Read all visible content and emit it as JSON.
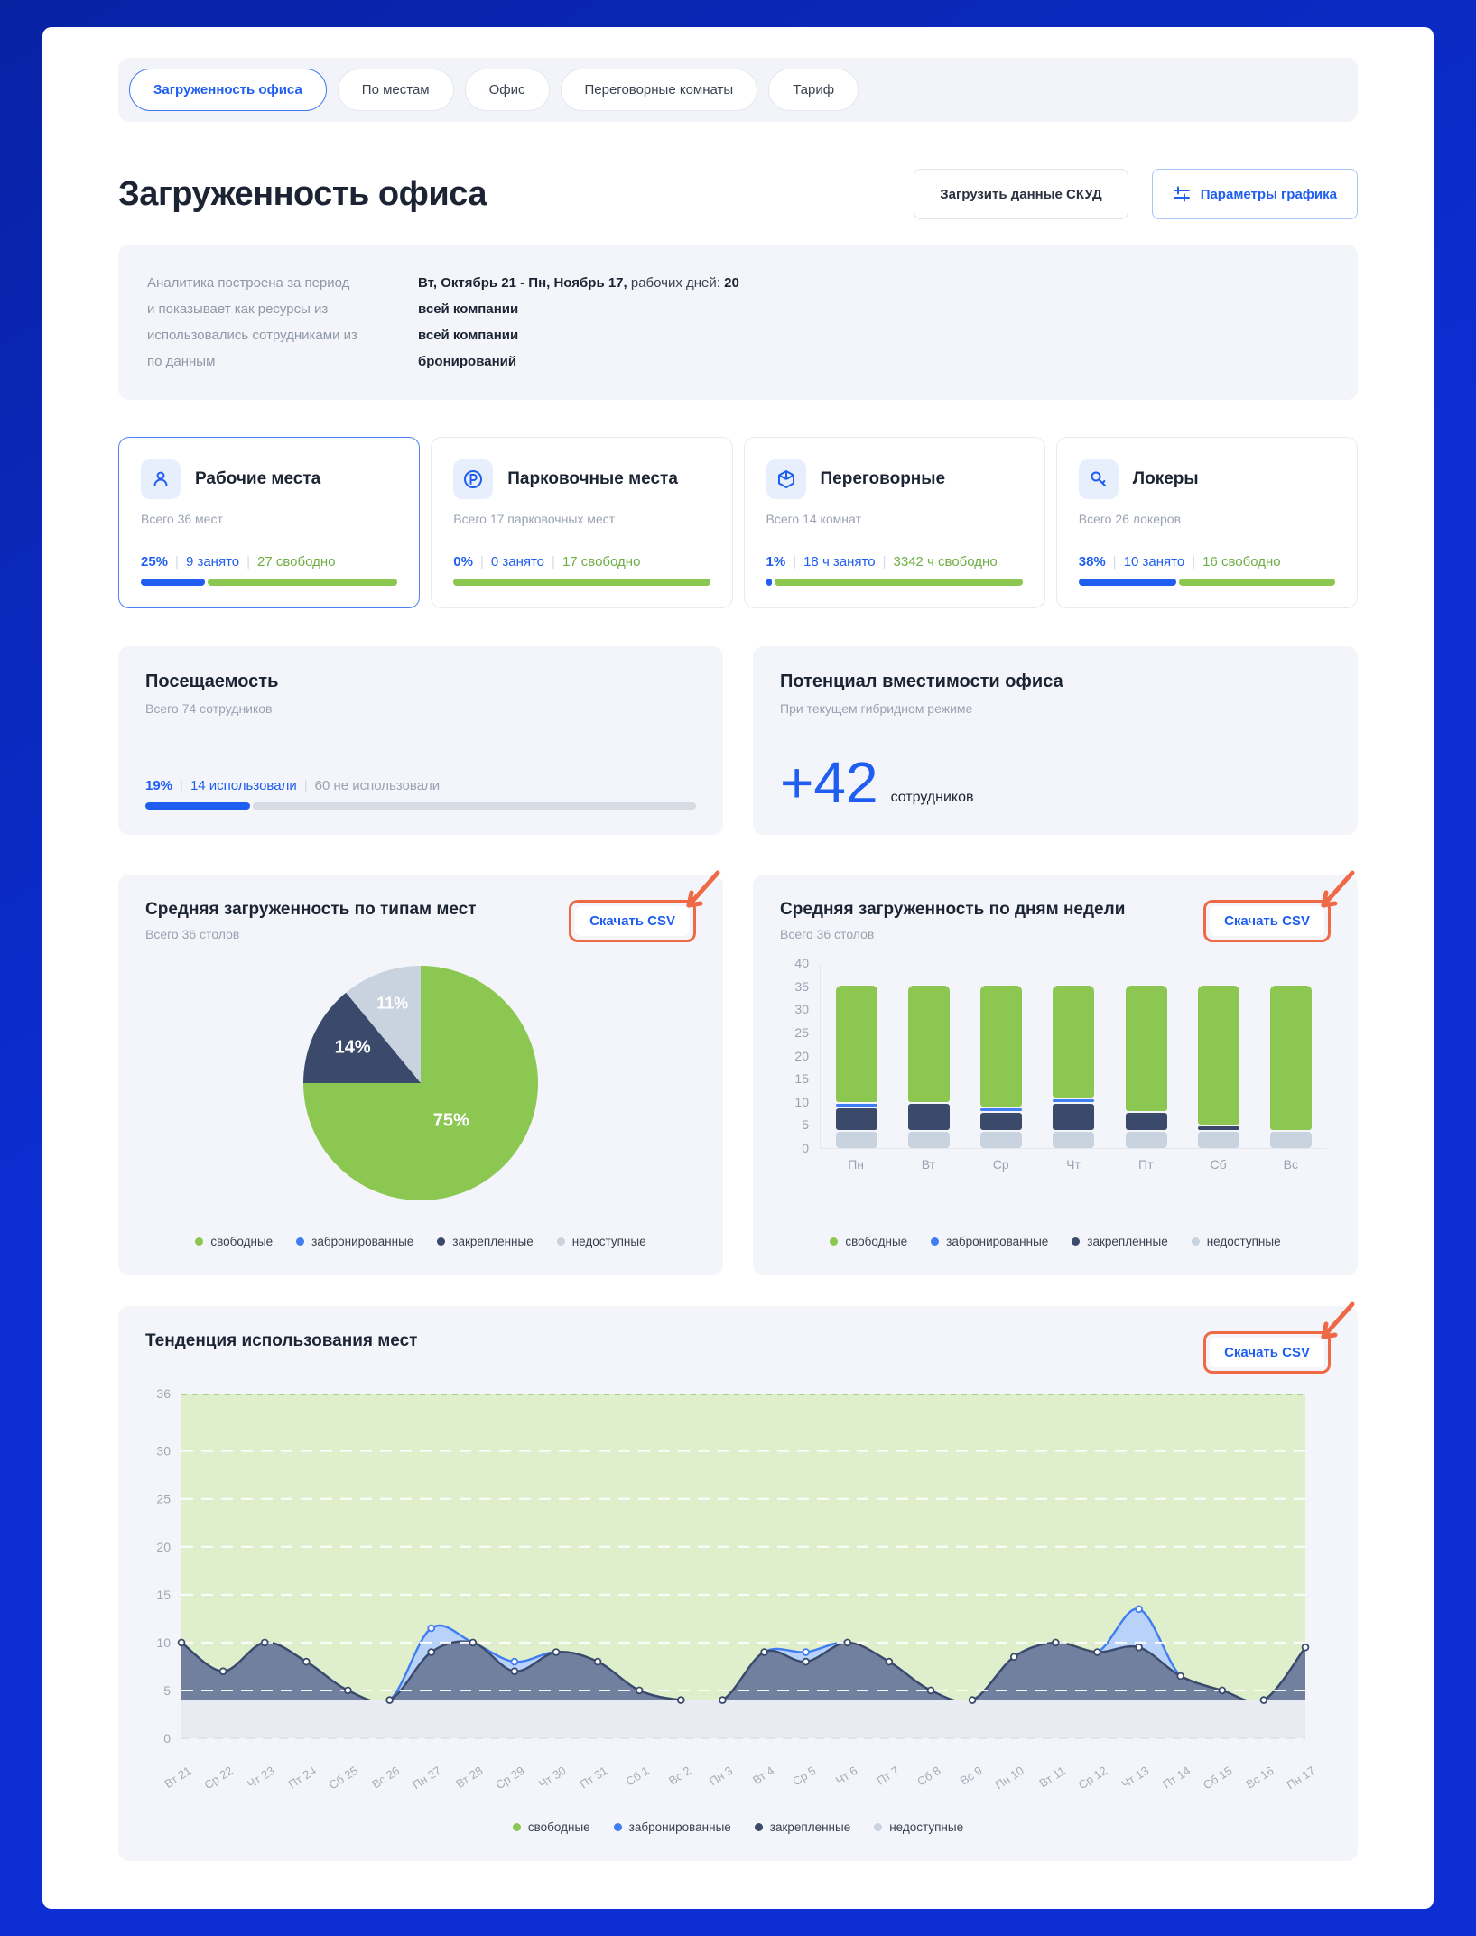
{
  "tabs": {
    "items": [
      {
        "label": "Загруженность офиса",
        "active": true
      },
      {
        "label": "По местам",
        "active": false
      },
      {
        "label": "Офис",
        "active": false
      },
      {
        "label": "Переговорные комнаты",
        "active": false
      },
      {
        "label": "Тариф",
        "active": false
      }
    ]
  },
  "header": {
    "title": "Загруженность офиса",
    "upload_button": "Загрузить данные СКУД",
    "params_button": "Параметры графика"
  },
  "period": {
    "left": [
      "Аналитика построена за период",
      "и показывает как ресурсы из",
      "использовались сотрудниками из",
      "по данным"
    ],
    "row1": {
      "range": "Вт, Октябрь 21 - Пн, Ноябрь 17,",
      "label": " рабочих дней: ",
      "days": "20"
    },
    "rows": [
      "всей компании",
      "всей компании",
      "бронирований"
    ]
  },
  "resources": [
    {
      "icon": "user",
      "title": "Рабочие места",
      "subtitle": "Всего 36 мест",
      "percent": "25%",
      "occupied": "9 занято",
      "free": "27 свободно",
      "occupied_ratio": 0.25,
      "active": true
    },
    {
      "icon": "parking",
      "title": "Парковочные места",
      "subtitle": "Всего 17 парковочных мест",
      "percent": "0%",
      "occupied": "0 занято",
      "free": "17 свободно",
      "occupied_ratio": 0,
      "active": false
    },
    {
      "icon": "cube",
      "title": "Переговорные",
      "subtitle": "Всего 14 комнат",
      "percent": "1%",
      "occupied": "18 ч занято",
      "free": "3342 ч свободно",
      "occupied_ratio": 0.013,
      "active": false
    },
    {
      "icon": "key",
      "title": "Локеры",
      "subtitle": "Всего 26 локеров",
      "percent": "38%",
      "occupied": "10 занято",
      "free": "16 свободно",
      "occupied_ratio": 0.38,
      "active": false
    }
  ],
  "attendance": {
    "title": "Посещаемость",
    "subtitle": "Всего 74 сотрудников",
    "percent": "19%",
    "used": "14 использовали",
    "not_used": "60 не использовали",
    "ratio": 0.19
  },
  "capacity": {
    "title": "Потенциал вместимости офиса",
    "subtitle": "При текущем гибридном режиме",
    "value": "+42",
    "unit": "сотрудников"
  },
  "download_csv": "Скачать CSV",
  "legend_items": [
    {
      "label": "свободные",
      "color": "#8cc751"
    },
    {
      "label": "забронированные",
      "color": "#3f7df2"
    },
    {
      "label": "закрепленные",
      "color": "#3b4a6b"
    },
    {
      "label": "недоступные",
      "color": "#c9d3e0"
    }
  ],
  "colors": {
    "accent_blue": "#1f5ef0",
    "green": "#8cc751",
    "navy": "#3b4a6b",
    "light_gray_blue": "#c9d3e0",
    "annotation_red": "#ee6a47",
    "trend_green_bg": "#dfeecb",
    "trend_navy_fill": "#71809f",
    "trend_blue_fill": "#b9d2fa",
    "trend_gray_band": "#e8ebf1"
  },
  "chart_data": [
    {
      "type": "pie",
      "title": "Средняя загруженность по типам мест",
      "subtitle": "Всего 36 столов",
      "unit": "%",
      "slices": [
        {
          "label": "свободные",
          "value": 75,
          "color": "#8cc751"
        },
        {
          "label": "закрепленные",
          "value": 14,
          "color": "#3b4a6b"
        },
        {
          "label": "недоступные",
          "value": 11,
          "color": "#c9d3e0"
        }
      ],
      "legend": [
        "свободные",
        "забронированные",
        "закрепленные",
        "недоступные"
      ],
      "legend_position": "bottom"
    },
    {
      "type": "bar",
      "stacked": true,
      "title": "Средняя загруженность по дням недели",
      "subtitle": "Всего 36 столов",
      "categories": [
        "Пн",
        "Вт",
        "Ср",
        "Чт",
        "Пт",
        "Сб",
        "Вс"
      ],
      "series": [
        {
          "name": "свободные",
          "color": "#8cc751",
          "values": [
            25.5,
            25.5,
            26.5,
            24.5,
            27.5,
            30.5,
            31.5
          ]
        },
        {
          "name": "забронированные",
          "color": "#3f7df2",
          "values": [
            1,
            0,
            1,
            1,
            0,
            0,
            0
          ]
        },
        {
          "name": "закрепленные",
          "color": "#3b4a6b",
          "values": [
            5,
            6,
            4,
            6,
            4,
            1,
            0
          ]
        },
        {
          "name": "недоступные",
          "color": "#c9d3e0",
          "values": [
            4,
            4,
            4,
            4,
            4,
            4,
            4
          ]
        }
      ],
      "stack_order_bottom_to_top": [
        "недоступные",
        "закрепленные",
        "забронированные",
        "свободные"
      ],
      "ylim": [
        0,
        40
      ],
      "yticks": [
        0,
        5,
        10,
        15,
        20,
        25,
        30,
        35,
        40
      ],
      "grid": false,
      "legend_position": "bottom"
    },
    {
      "type": "area",
      "title": "Тенденция использования мест",
      "x": [
        "Вт 21",
        "Ср 22",
        "Чт 23",
        "Пт 24",
        "Сб 25",
        "Вс 26",
        "Пн 27",
        "Вт 28",
        "Ср 29",
        "Чт 30",
        "Пт 31",
        "Сб 1",
        "Вс 2",
        "Пн 3",
        "Вт 4",
        "Ср 5",
        "Чт 6",
        "Пт 7",
        "Сб 8",
        "Вс 9",
        "Пн 10",
        "Вт 11",
        "Ср 12",
        "Чт 13",
        "Пт 14",
        "Сб 15",
        "Вс 16",
        "Пн 17"
      ],
      "ylim": [
        0,
        36
      ],
      "yticks": [
        0,
        5,
        10,
        15,
        20,
        25,
        30,
        36
      ],
      "grid": "dashed-white",
      "series": [
        {
          "name": "свободные",
          "role": "background-fill-to-36",
          "color": "#dfeecb"
        },
        {
          "name": "забронированные",
          "line_color": "#3f7df2",
          "fill_color": "#b9d2fa",
          "values": [
            10,
            7,
            10,
            8,
            5,
            4,
            11.5,
            10,
            8,
            9,
            8,
            5,
            4,
            4,
            9,
            9,
            10,
            8,
            5,
            4,
            8.5,
            10,
            9,
            13.5,
            6.5,
            5,
            4,
            9.5
          ]
        },
        {
          "name": "закрепленные",
          "line_color": "#3b4a6b",
          "fill_color": "#71809f",
          "values": [
            10,
            7,
            10,
            8,
            5,
            4,
            9,
            10,
            7,
            9,
            8,
            5,
            4,
            4,
            9,
            8,
            10,
            8,
            5,
            4,
            8.5,
            10,
            9,
            9.5,
            6.5,
            5,
            4,
            9.5
          ]
        },
        {
          "name": "недоступные",
          "role": "constant-band",
          "value": 4,
          "color": "#e8ebf1"
        }
      ],
      "legend_position": "bottom"
    }
  ]
}
